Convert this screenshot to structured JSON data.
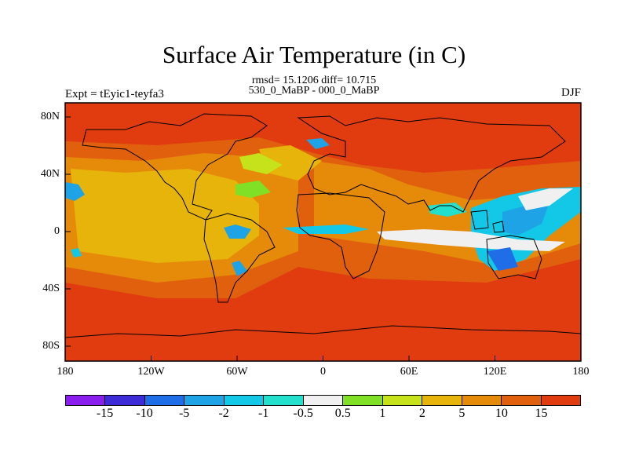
{
  "header": {
    "title": "Surface Air Temperature (in C)",
    "stats": "rmsd= 15.1206 diff= 10.715",
    "subtitle": "530_0_MaBP - 000_0_MaBP",
    "expt": "Expt = tEyic1-teyfa3",
    "season": "DJF"
  },
  "axes": {
    "y_ticks": [
      {
        "label": "80N",
        "lat": 80
      },
      {
        "label": "40N",
        "lat": 40
      },
      {
        "label": "0",
        "lat": 0
      },
      {
        "label": "40S",
        "lat": -40
      },
      {
        "label": "80S",
        "lat": -80
      }
    ],
    "x_ticks": [
      {
        "label": "180",
        "lon": -180
      },
      {
        "label": "120W",
        "lon": -120
      },
      {
        "label": "60W",
        "lon": -60
      },
      {
        "label": "0",
        "lon": 0
      },
      {
        "label": "60E",
        "lon": 60
      },
      {
        "label": "120E",
        "lon": 120
      },
      {
        "label": "180",
        "lon": 180
      }
    ]
  },
  "colors": {
    "background_field": "#e03c10"
  },
  "legend": {
    "colors": [
      "#8a1eee",
      "#3c2bd6",
      "#1f6ee8",
      "#1da3e6",
      "#12c8e6",
      "#23e0cc",
      "#f0f0f0",
      "#7fe026",
      "#c5e21a",
      "#e6b40a",
      "#e68a0a",
      "#e0600d",
      "#e03c10"
    ],
    "labels": [
      "-15",
      "-10",
      "-5",
      "-2",
      "-1",
      "-0.5",
      "0.5",
      "1",
      "2",
      "5",
      "10",
      "15"
    ]
  }
}
